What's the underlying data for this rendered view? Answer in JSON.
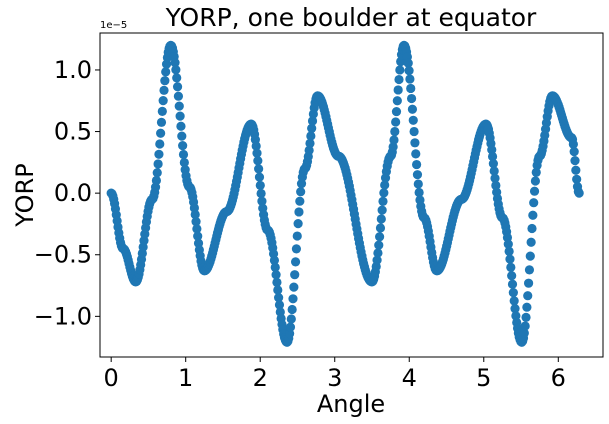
{
  "chart_data": {
    "type": "scatter",
    "title": "YORP, one boulder at equator",
    "xlabel": "Angle",
    "ylabel": "YORP",
    "y_offset_label": "1e−5",
    "x_tick_labels": [
      "0",
      "1",
      "2",
      "3",
      "4",
      "5",
      "6"
    ],
    "x_ticks": [
      0,
      1,
      2,
      3,
      4,
      5,
      6
    ],
    "y_tick_labels": [
      "−1.0",
      "−0.5",
      "0.0",
      "0.5",
      "1.0"
    ],
    "y_ticks": [
      -1.0,
      -0.5,
      0.0,
      0.5,
      1.0
    ],
    "xlim": [
      -0.15,
      6.6
    ],
    "ylim": [
      -1.33,
      1.3
    ],
    "y_scale_factor": 1e-05,
    "marker_color": "#1f77b4",
    "grid": false,
    "series": [
      {
        "x": [
          0.0,
          0.16,
          0.33,
          0.55,
          0.8,
          1.05,
          1.25,
          1.55,
          1.88,
          2.1,
          2.36,
          2.6,
          2.77,
          3.05,
          3.5,
          3.75,
          3.93,
          4.2,
          4.37,
          4.7,
          5.03,
          5.25,
          5.51,
          5.75,
          5.92,
          6.18,
          6.28
        ],
        "y": [
          0.0,
          -0.45,
          -0.72,
          -0.05,
          1.2,
          0.05,
          -0.63,
          -0.15,
          0.56,
          -0.3,
          -1.21,
          0.2,
          0.79,
          0.3,
          -0.72,
          0.3,
          1.2,
          -0.2,
          -0.63,
          -0.05,
          0.56,
          -0.2,
          -1.21,
          0.3,
          0.79,
          0.45,
          0.0
        ]
      }
    ]
  }
}
